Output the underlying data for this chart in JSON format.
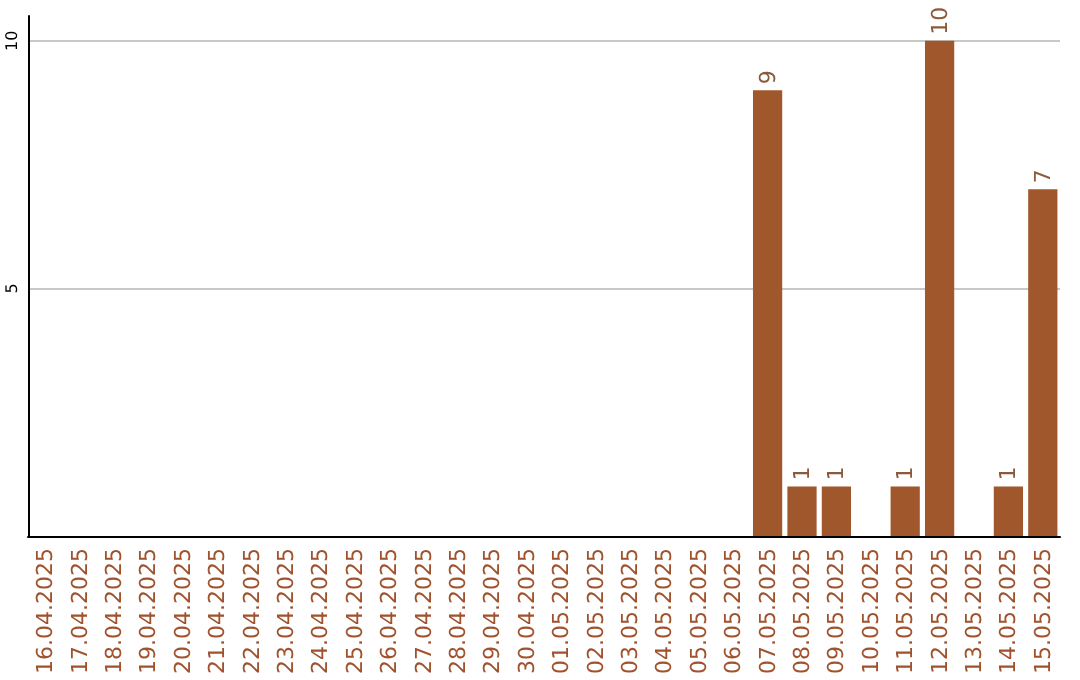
{
  "chart_data": {
    "type": "bar",
    "categories": [
      "16.04.2025",
      "17.04.2025",
      "18.04.2025",
      "19.04.2025",
      "20.04.2025",
      "21.04.2025",
      "22.04.2025",
      "23.04.2025",
      "24.04.2025",
      "25.04.2025",
      "26.04.2025",
      "27.04.2025",
      "28.04.2025",
      "29.04.2025",
      "30.04.2025",
      "01.05.2025",
      "02.05.2025",
      "03.05.2025",
      "04.05.2025",
      "05.05.2025",
      "06.05.2025",
      "07.05.2025",
      "08.05.2025",
      "09.05.2025",
      "10.05.2025",
      "11.05.2025",
      "12.05.2025",
      "13.05.2025",
      "14.05.2025",
      "15.05.2025"
    ],
    "values": [
      null,
      null,
      null,
      null,
      null,
      null,
      null,
      null,
      null,
      null,
      null,
      null,
      null,
      null,
      null,
      null,
      null,
      null,
      null,
      null,
      null,
      9,
      1,
      1,
      null,
      1,
      10,
      null,
      1,
      7
    ],
    "color": "#a0572b",
    "ylim": [
      0,
      10.5
    ],
    "yticks": [
      5,
      10
    ],
    "grid": "y",
    "data_labels": true
  }
}
